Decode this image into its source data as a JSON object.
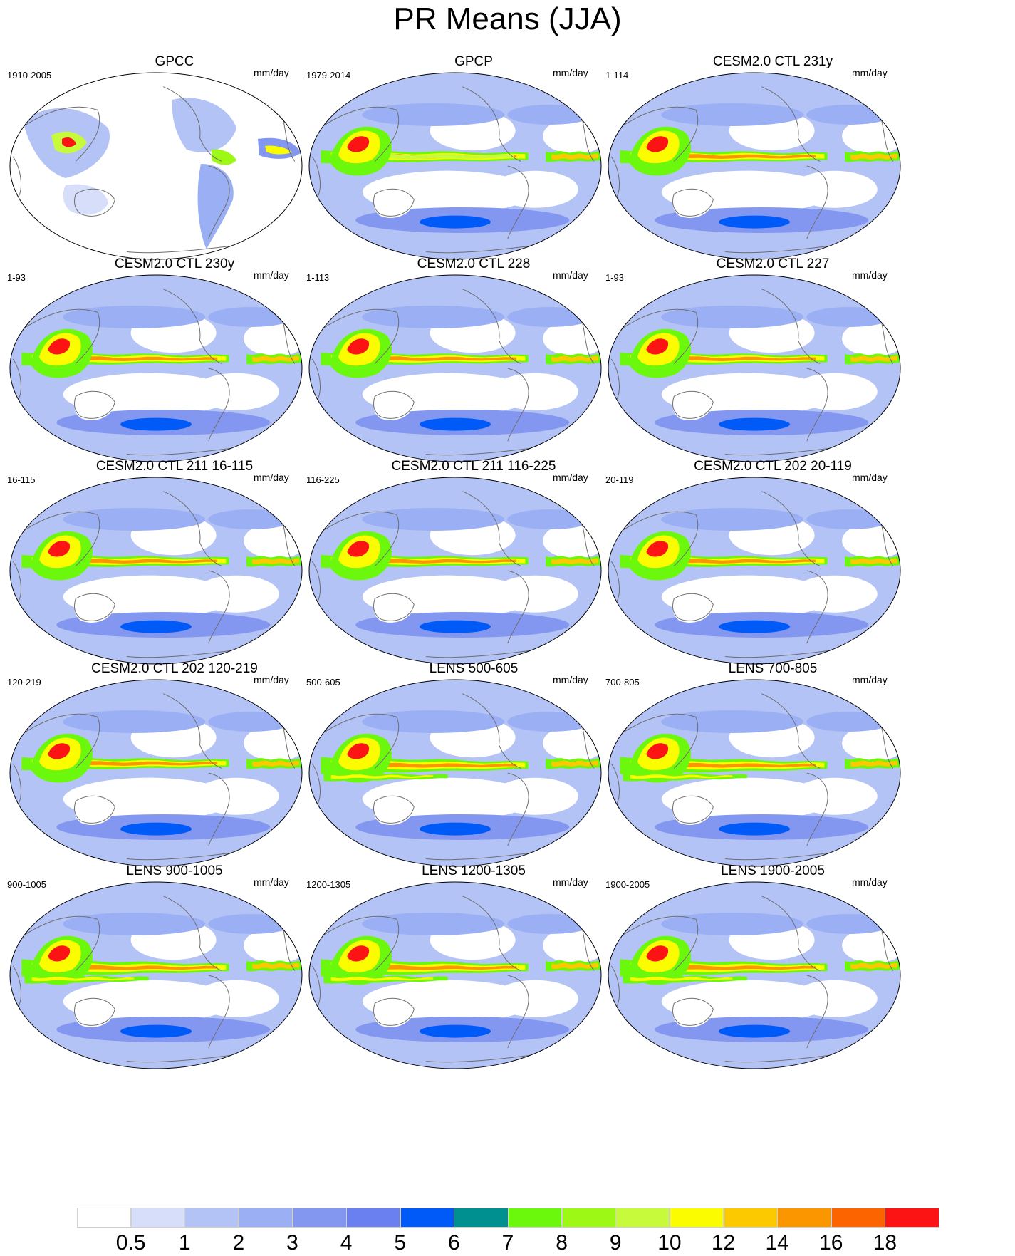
{
  "title": "PR Means (JJA)",
  "units": "mm/day",
  "panels": [
    {
      "title": "GPCC",
      "period": "1910-2005",
      "style": "obs-land"
    },
    {
      "title": "GPCP",
      "period": "1979-2014",
      "style": "obs"
    },
    {
      "title": "CESM2.0 CTL 231y",
      "period": "1-114",
      "style": "cesm"
    },
    {
      "title": "CESM2.0 CTL 230y",
      "period": "1-93",
      "style": "cesm"
    },
    {
      "title": "CESM2.0 CTL 228",
      "period": "1-113",
      "style": "cesm"
    },
    {
      "title": "CESM2.0 CTL 227",
      "period": "1-93",
      "style": "cesm"
    },
    {
      "title": "CESM2.0 CTL 211 16-115",
      "period": "16-115",
      "style": "cesm"
    },
    {
      "title": "CESM2.0 CTL 211 116-225",
      "period": "116-225",
      "style": "cesm"
    },
    {
      "title": "CESM2.0 CTL 202 20-119",
      "period": "20-119",
      "style": "cesm"
    },
    {
      "title": "CESM2.0 CTL 202 120-219",
      "period": "120-219",
      "style": "cesm"
    },
    {
      "title": "LENS 500-605",
      "period": "500-605",
      "style": "lens"
    },
    {
      "title": "LENS 700-805",
      "period": "700-805",
      "style": "lens"
    },
    {
      "title": "LENS 900-1005",
      "period": "900-1005",
      "style": "lens"
    },
    {
      "title": "LENS 1200-1305",
      "period": "1200-1305",
      "style": "lens"
    },
    {
      "title": "LENS 1900-2005",
      "period": "1900-2005",
      "style": "lens"
    }
  ],
  "colorbar": {
    "labels": [
      "0.5",
      "1",
      "2",
      "3",
      "4",
      "5",
      "6",
      "7",
      "8",
      "9",
      "10",
      "12",
      "14",
      "16",
      "18"
    ],
    "colors": [
      "#ffffff",
      "#d7defa",
      "#b4c3f6",
      "#9baff4",
      "#8497f0",
      "#6a7ff0",
      "#005af8",
      "#009090",
      "#6cf80c",
      "#9cf814",
      "#c8fa3c",
      "#fcfc00",
      "#fcc800",
      "#fc9600",
      "#fc6400",
      "#fc1414"
    ]
  }
}
